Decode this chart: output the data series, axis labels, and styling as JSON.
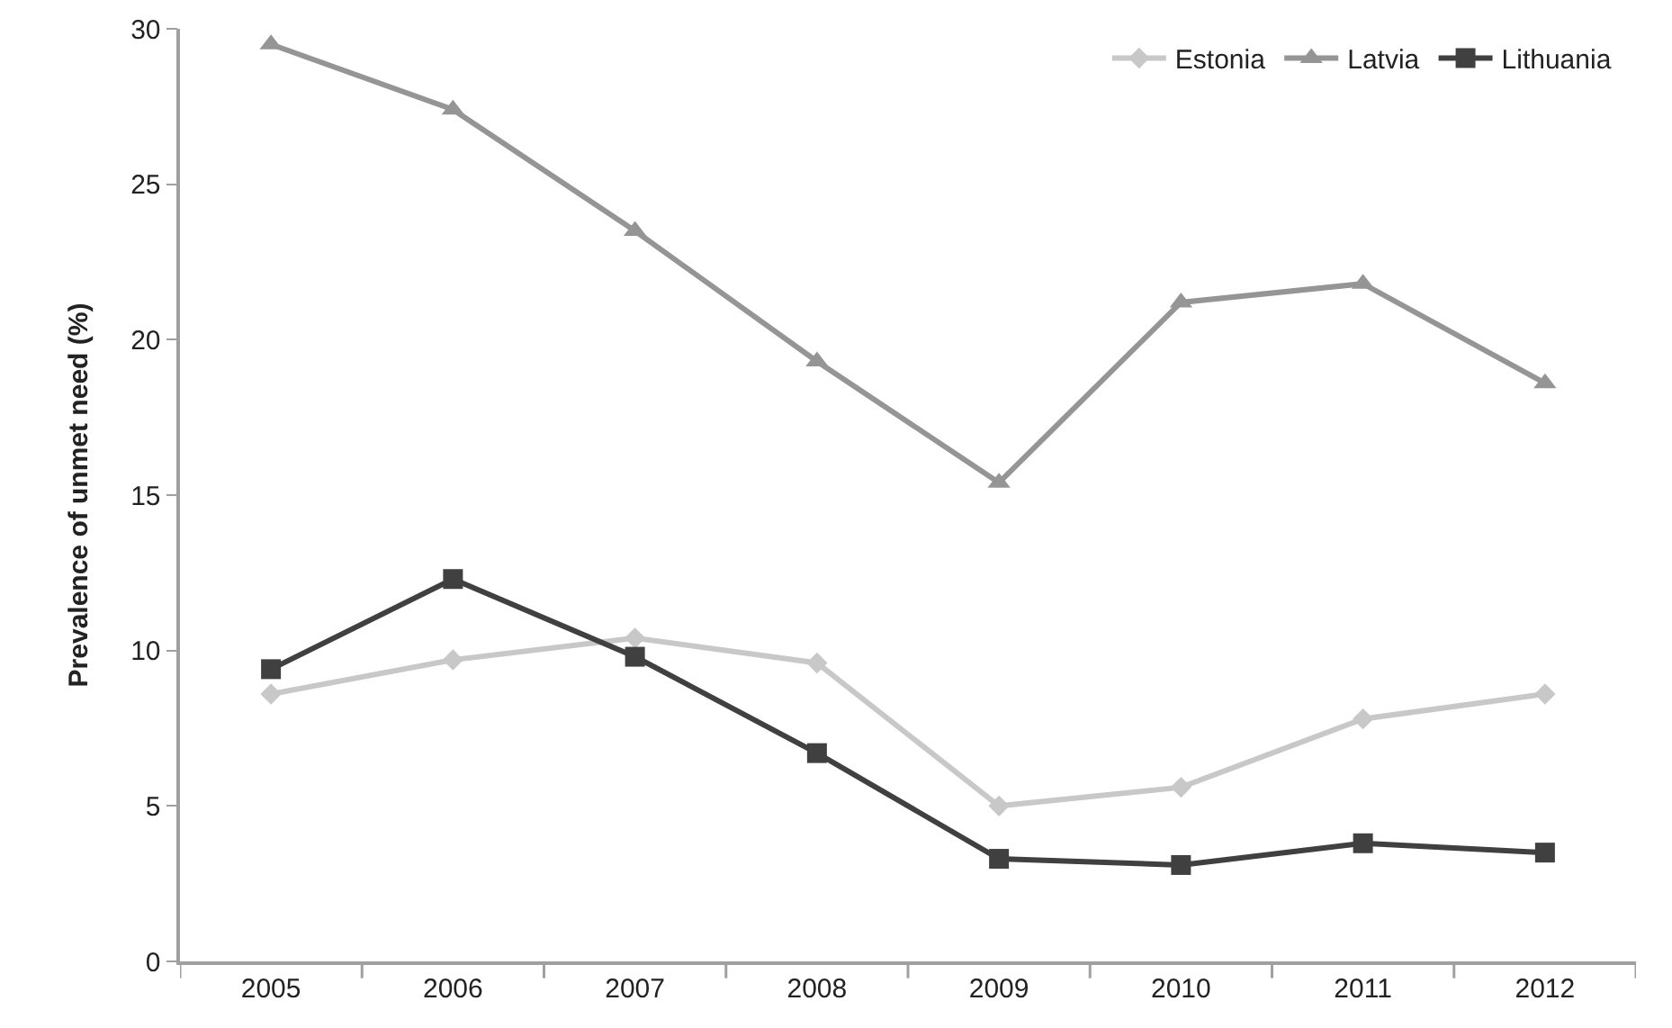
{
  "chart_data": {
    "type": "line",
    "ylabel": "Prevalence of unmet need (%)",
    "categories": [
      "2005",
      "2006",
      "2007",
      "2008",
      "2009",
      "2010",
      "2011",
      "2012"
    ],
    "ylim": [
      0,
      30
    ],
    "yticks": [
      0,
      5,
      10,
      15,
      20,
      25,
      30
    ],
    "grid": false,
    "legend": "top right",
    "line_style": "solid",
    "series": [
      {
        "name": "Estonia",
        "color": "#c8c8c8",
        "marker": "diamond",
        "values": [
          8.6,
          9.7,
          10.4,
          9.6,
          5.0,
          5.6,
          7.8,
          8.6
        ]
      },
      {
        "name": "Latvia",
        "color": "#959595",
        "marker": "triangle",
        "values": [
          29.5,
          27.4,
          23.5,
          19.3,
          15.4,
          21.2,
          21.8,
          18.6
        ]
      },
      {
        "name": "Lithuania",
        "color": "#404040",
        "marker": "square",
        "values": [
          9.4,
          12.3,
          9.8,
          6.7,
          3.3,
          3.1,
          3.8,
          3.5
        ]
      }
    ]
  }
}
